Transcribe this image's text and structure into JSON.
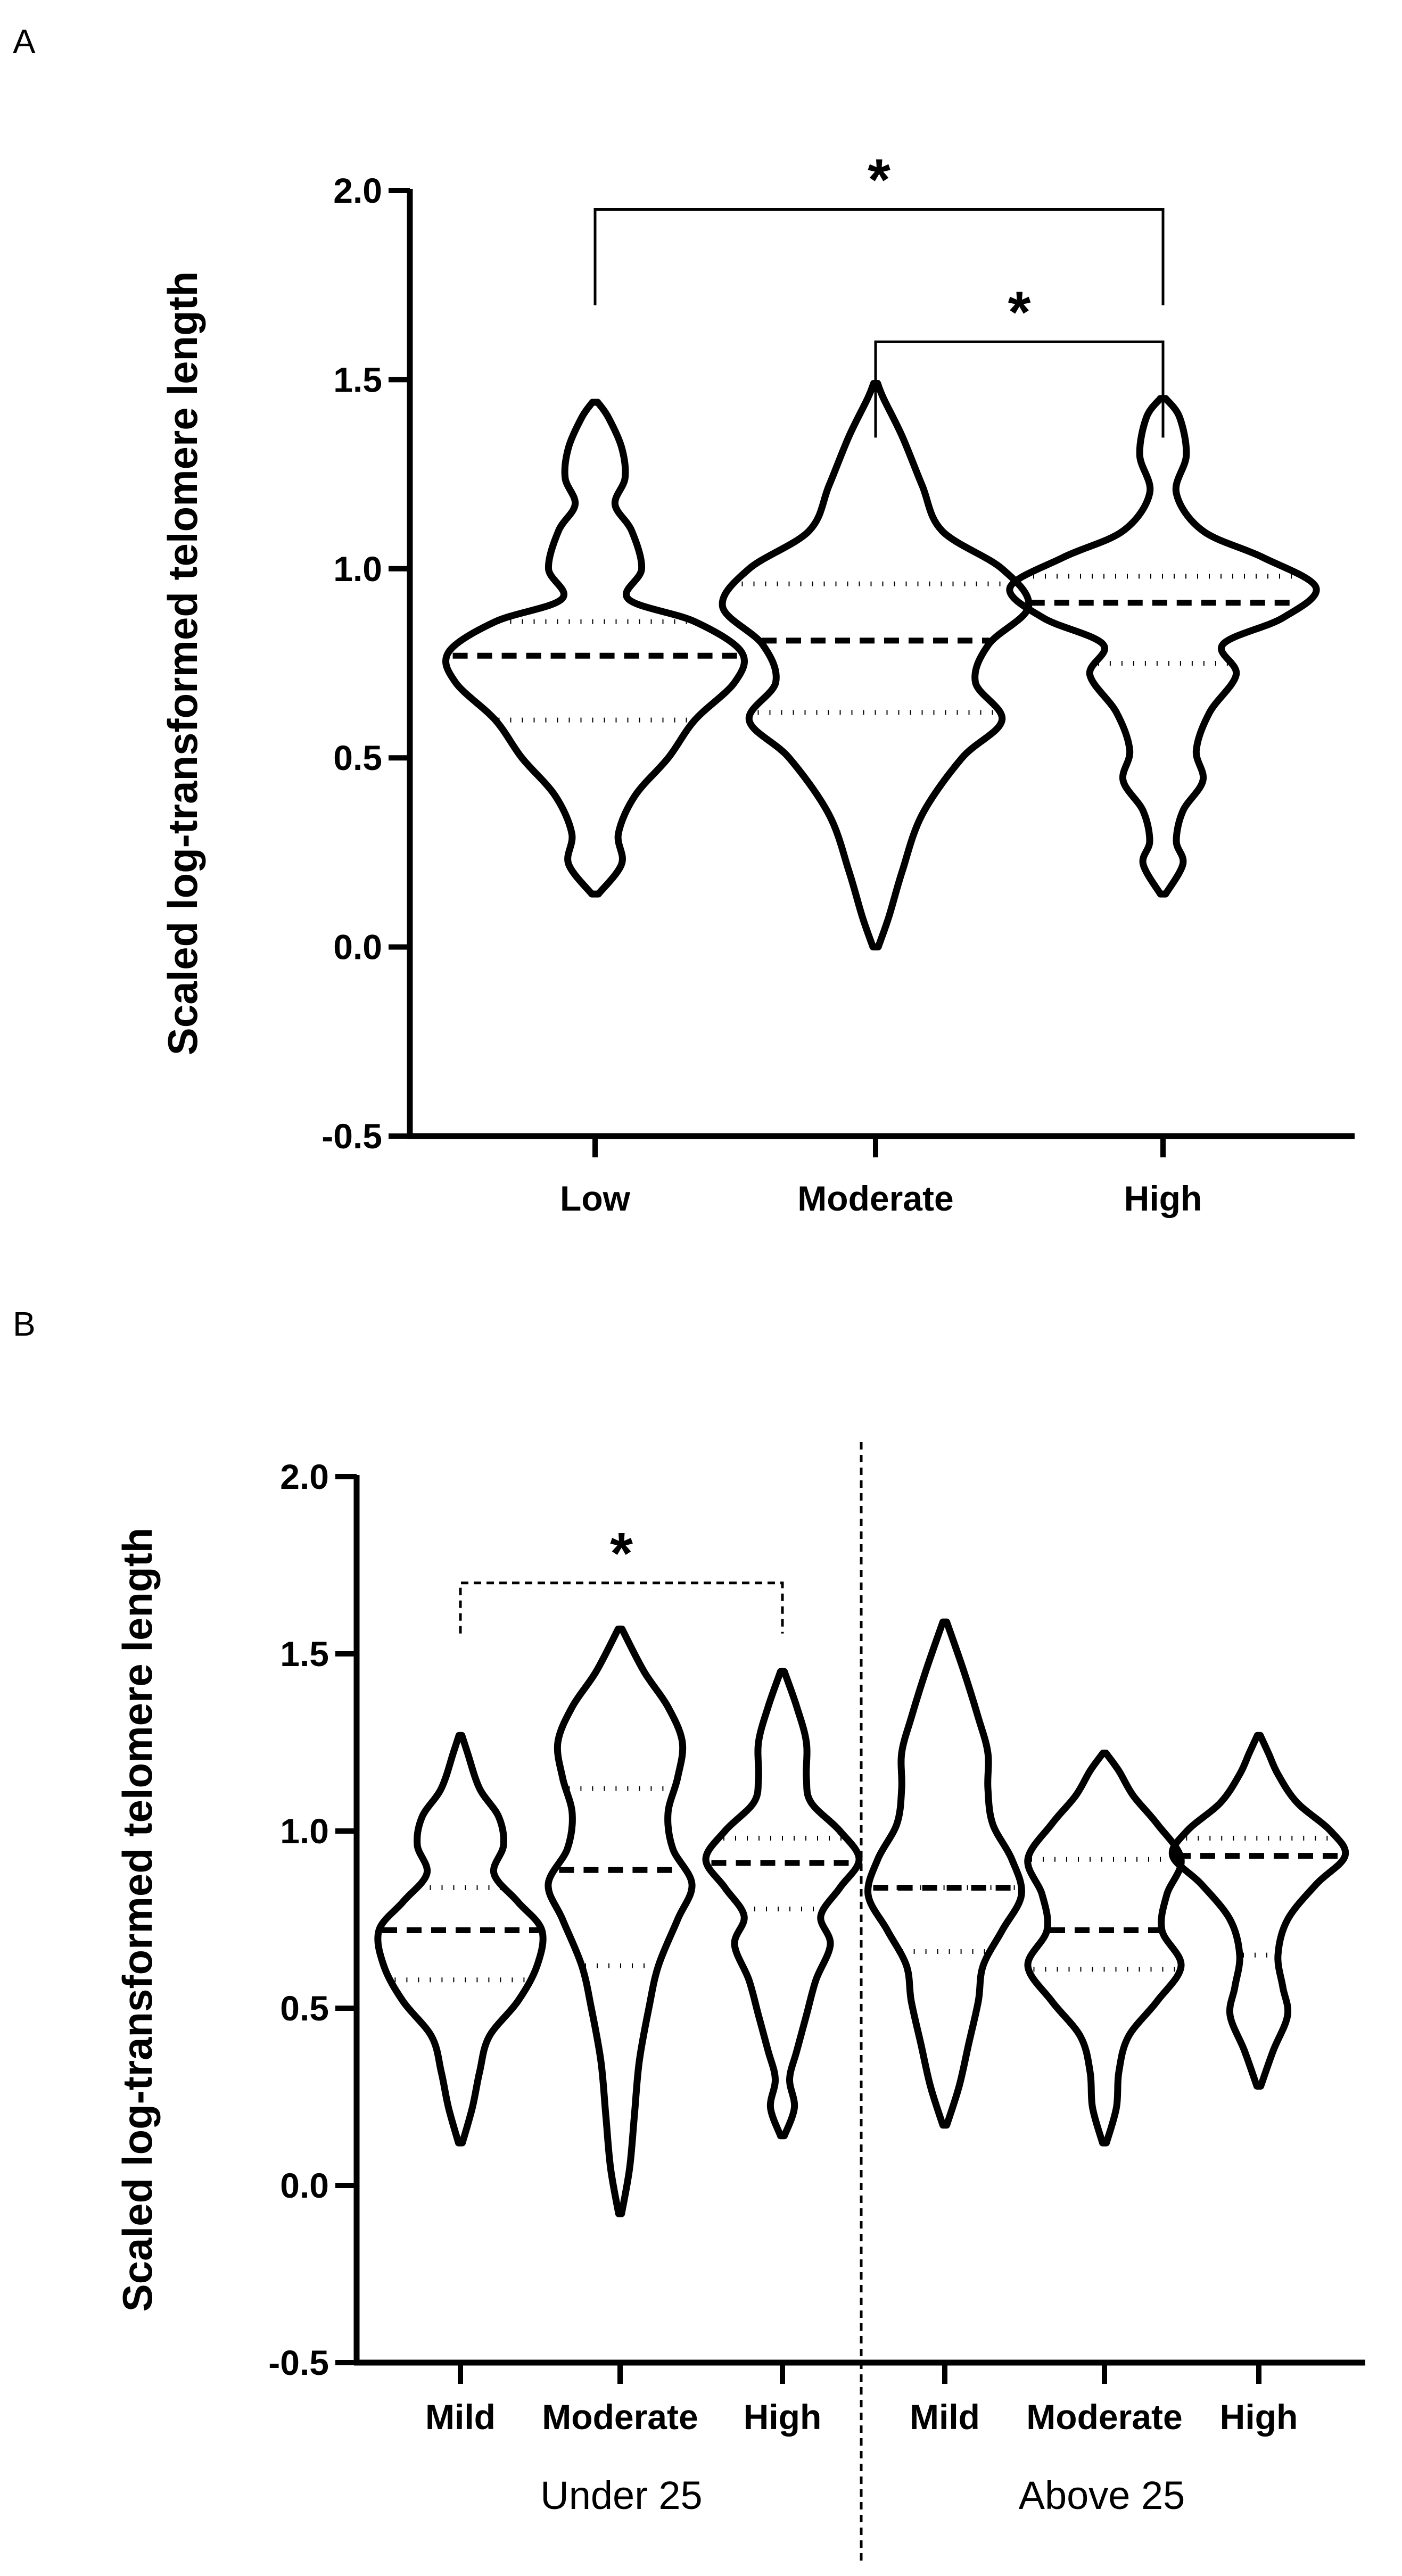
{
  "chart_data": [
    {
      "panel": "A",
      "type": "violin",
      "ylabel": "Scaled log-transformed telomere length",
      "xlabel": "",
      "ylim": [
        -0.5,
        2.0
      ],
      "yticks": [
        "-0.5",
        "0.0",
        "0.5",
        "1.0",
        "1.5",
        "2.0"
      ],
      "categories": [
        "Low",
        "Moderate",
        "High"
      ],
      "series": [
        {
          "name": "Low",
          "min": 0.14,
          "max": 1.44,
          "median": 0.77,
          "q1": 0.6,
          "q3": 0.86,
          "profile": [
            [
              0.14,
              0.005
            ],
            [
              0.22,
              0.04
            ],
            [
              0.3,
              0.035
            ],
            [
              0.4,
              0.06
            ],
            [
              0.5,
              0.11
            ],
            [
              0.6,
              0.15
            ],
            [
              0.7,
              0.21
            ],
            [
              0.78,
              0.22
            ],
            [
              0.86,
              0.15
            ],
            [
              0.92,
              0.05
            ],
            [
              1.0,
              0.07
            ],
            [
              1.1,
              0.055
            ],
            [
              1.17,
              0.03
            ],
            [
              1.24,
              0.045
            ],
            [
              1.32,
              0.04
            ],
            [
              1.4,
              0.02
            ],
            [
              1.44,
              0.004
            ]
          ]
        },
        {
          "name": "Moderate",
          "min": 0.0,
          "max": 1.49,
          "median": 0.81,
          "q1": 0.62,
          "q3": 0.96,
          "profile": [
            [
              0.0,
              0.004
            ],
            [
              0.08,
              0.02
            ],
            [
              0.2,
              0.04
            ],
            [
              0.35,
              0.07
            ],
            [
              0.5,
              0.13
            ],
            [
              0.6,
              0.19
            ],
            [
              0.7,
              0.15
            ],
            [
              0.8,
              0.17
            ],
            [
              0.9,
              0.23
            ],
            [
              1.0,
              0.19
            ],
            [
              1.1,
              0.1
            ],
            [
              1.22,
              0.07
            ],
            [
              1.35,
              0.04
            ],
            [
              1.45,
              0.012
            ],
            [
              1.49,
              0.003
            ]
          ]
        },
        {
          "name": "High",
          "min": 0.14,
          "max": 1.45,
          "median": 0.91,
          "q1": 0.75,
          "q3": 0.98,
          "profile": [
            [
              0.14,
              0.004
            ],
            [
              0.22,
              0.03
            ],
            [
              0.28,
              0.02
            ],
            [
              0.36,
              0.03
            ],
            [
              0.44,
              0.06
            ],
            [
              0.52,
              0.05
            ],
            [
              0.62,
              0.07
            ],
            [
              0.72,
              0.11
            ],
            [
              0.8,
              0.09
            ],
            [
              0.87,
              0.18
            ],
            [
              0.95,
              0.23
            ],
            [
              1.03,
              0.15
            ],
            [
              1.1,
              0.06
            ],
            [
              1.2,
              0.02
            ],
            [
              1.3,
              0.035
            ],
            [
              1.4,
              0.025
            ],
            [
              1.45,
              0.004
            ]
          ]
        }
      ],
      "annotations": [
        {
          "from": "Low",
          "to": "High",
          "label": "*",
          "level": 1.95,
          "style": "solid"
        },
        {
          "from": "Moderate",
          "to": "High",
          "label": "*",
          "level": 1.6,
          "style": "solid"
        }
      ]
    },
    {
      "panel": "B",
      "type": "violin",
      "ylabel": "Scaled log-transformed telomere length",
      "xlabel": "",
      "ylim": [
        -0.5,
        2.0
      ],
      "yticks": [
        "-0.5",
        "0.0",
        "0.5",
        "1.0",
        "1.5",
        "2.0"
      ],
      "categories": [
        "Mild",
        "Moderate",
        "High",
        "Mild",
        "Moderate",
        "High"
      ],
      "groups": [
        {
          "label": "Under 25",
          "indices": [
            0,
            1,
            2
          ]
        },
        {
          "label": "Above 25",
          "indices": [
            3,
            4,
            5
          ]
        }
      ],
      "series": [
        {
          "name": "Under 25 Mild",
          "min": 0.12,
          "max": 1.27,
          "median": 0.72,
          "q1": 0.58,
          "q3": 0.84,
          "profile": [
            [
              0.12,
              0.004
            ],
            [
              0.22,
              0.025
            ],
            [
              0.32,
              0.04
            ],
            [
              0.42,
              0.06
            ],
            [
              0.52,
              0.12
            ],
            [
              0.62,
              0.16
            ],
            [
              0.72,
              0.17
            ],
            [
              0.8,
              0.12
            ],
            [
              0.88,
              0.07
            ],
            [
              0.96,
              0.09
            ],
            [
              1.04,
              0.08
            ],
            [
              1.12,
              0.04
            ],
            [
              1.22,
              0.015
            ],
            [
              1.27,
              0.003
            ]
          ]
        },
        {
          "name": "Under 25 Moderate",
          "min": -0.08,
          "max": 1.57,
          "median": 0.89,
          "q1": 0.62,
          "q3": 1.12,
          "profile": [
            [
              -0.08,
              0.003
            ],
            [
              0.05,
              0.02
            ],
            [
              0.2,
              0.03
            ],
            [
              0.35,
              0.04
            ],
            [
              0.5,
              0.06
            ],
            [
              0.62,
              0.08
            ],
            [
              0.75,
              0.12
            ],
            [
              0.85,
              0.15
            ],
            [
              0.95,
              0.11
            ],
            [
              1.05,
              0.1
            ],
            [
              1.15,
              0.12
            ],
            [
              1.25,
              0.13
            ],
            [
              1.35,
              0.1
            ],
            [
              1.45,
              0.05
            ],
            [
              1.57,
              0.004
            ]
          ]
        },
        {
          "name": "Under 25 High",
          "min": 0.14,
          "max": 1.45,
          "median": 0.91,
          "q1": 0.78,
          "q3": 0.98,
          "profile": [
            [
              0.14,
              0.004
            ],
            [
              0.22,
              0.025
            ],
            [
              0.3,
              0.015
            ],
            [
              0.38,
              0.03
            ],
            [
              0.48,
              0.05
            ],
            [
              0.58,
              0.07
            ],
            [
              0.68,
              0.1
            ],
            [
              0.76,
              0.08
            ],
            [
              0.84,
              0.12
            ],
            [
              0.92,
              0.16
            ],
            [
              1.0,
              0.12
            ],
            [
              1.08,
              0.06
            ],
            [
              1.15,
              0.05
            ],
            [
              1.25,
              0.05
            ],
            [
              1.35,
              0.03
            ],
            [
              1.45,
              0.004
            ]
          ]
        },
        {
          "name": "Above 25 Mild",
          "min": 0.17,
          "max": 1.59,
          "median": 0.84,
          "q1": 0.66,
          "q3": 0.84,
          "profile": [
            [
              0.17,
              0.004
            ],
            [
              0.28,
              0.03
            ],
            [
              0.4,
              0.05
            ],
            [
              0.52,
              0.07
            ],
            [
              0.62,
              0.08
            ],
            [
              0.72,
              0.12
            ],
            [
              0.82,
              0.16
            ],
            [
              0.92,
              0.14
            ],
            [
              1.02,
              0.1
            ],
            [
              1.12,
              0.09
            ],
            [
              1.22,
              0.09
            ],
            [
              1.32,
              0.07
            ],
            [
              1.45,
              0.04
            ],
            [
              1.59,
              0.004
            ]
          ]
        },
        {
          "name": "Above 25 Moderate",
          "min": 0.12,
          "max": 1.22,
          "median": 0.72,
          "q1": 0.61,
          "q3": 0.92,
          "profile": [
            [
              0.12,
              0.004
            ],
            [
              0.22,
              0.025
            ],
            [
              0.32,
              0.03
            ],
            [
              0.42,
              0.05
            ],
            [
              0.52,
              0.11
            ],
            [
              0.62,
              0.16
            ],
            [
              0.72,
              0.12
            ],
            [
              0.82,
              0.13
            ],
            [
              0.92,
              0.16
            ],
            [
              1.02,
              0.11
            ],
            [
              1.1,
              0.06
            ],
            [
              1.17,
              0.03
            ],
            [
              1.22,
              0.003
            ]
          ]
        },
        {
          "name": "Above 25 High",
          "min": 0.28,
          "max": 1.27,
          "median": 0.93,
          "q1": 0.65,
          "q3": 0.98,
          "profile": [
            [
              0.28,
              0.004
            ],
            [
              0.38,
              0.03
            ],
            [
              0.48,
              0.06
            ],
            [
              0.56,
              0.05
            ],
            [
              0.65,
              0.04
            ],
            [
              0.75,
              0.06
            ],
            [
              0.85,
              0.12
            ],
            [
              0.93,
              0.18
            ],
            [
              1.0,
              0.15
            ],
            [
              1.08,
              0.08
            ],
            [
              1.16,
              0.04
            ],
            [
              1.22,
              0.02
            ],
            [
              1.27,
              0.003
            ]
          ]
        }
      ],
      "annotations": [
        {
          "from_index": 0,
          "to_index": 2,
          "label": "*",
          "level": 1.7,
          "style": "dashed"
        }
      ]
    }
  ]
}
